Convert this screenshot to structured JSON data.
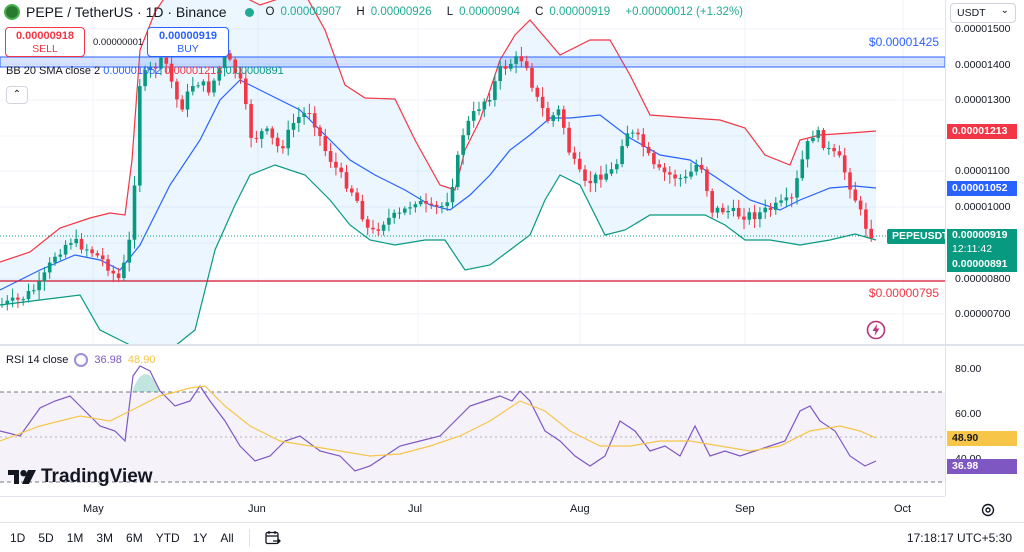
{
  "header": {
    "symbol_title": "PEPE / TetherUS · 1D · Binance",
    "ohlc": {
      "o_label": "O",
      "o": "0.00000907",
      "h_label": "H",
      "h": "0.00000926",
      "l_label": "L",
      "l": "0.00000904",
      "c_label": "C",
      "c": "0.00000919",
      "change": "+0.00000012 (+1.32%)"
    }
  },
  "trade": {
    "sell_price": "0.00000918",
    "sell_label": "SELL",
    "spread": "0.00000001",
    "buy_price": "0.00000919",
    "buy_label": "BUY"
  },
  "bb_legend": {
    "name": "BB 20 SMA close 2",
    "basis": "0.00001052",
    "upper": "0.00001213",
    "lower": "0.00000891"
  },
  "rsi_legend": {
    "name": "RSI 14 close",
    "rsi": "36.98",
    "ma": "48.90"
  },
  "brand": {
    "logo_text": "TradingView"
  },
  "currency": {
    "selected": "USDT"
  },
  "price_scale": {
    "ticks": [
      "0.00001500",
      "0.00001400",
      "0.00001300",
      "0.00001100",
      "0.00001000",
      "0.00000800",
      "0.00000700"
    ],
    "upper_tag": "0.00001213",
    "basis_tag": "0.00001052",
    "symbol_tag": "PEPEUSDT",
    "last_price": "0.00000919",
    "countdown": "12:11:42",
    "lower_tag": "0.00000891"
  },
  "levels": {
    "resistance_label": "$0.00001425",
    "support_label": "$0.00000795"
  },
  "rsi_scale": {
    "ticks": [
      "80.00",
      "60.00",
      "40.00"
    ],
    "ma_tag": "48.90",
    "rsi_tag": "36.98"
  },
  "time_axis": {
    "labels": [
      "May",
      "Jun",
      "Jul",
      "Aug",
      "Sep",
      "Oct"
    ]
  },
  "bottom_bar": {
    "timeframes": [
      "1D",
      "5D",
      "1M",
      "3M",
      "6M",
      "YTD",
      "1Y",
      "All"
    ],
    "clock": "17:18:17 UTC+5:30"
  },
  "colors": {
    "up": "#089981",
    "down": "#f23645",
    "basis": "#2962ff",
    "rsi": "#7e57c2",
    "rsi_ma": "#f7c548"
  }
}
